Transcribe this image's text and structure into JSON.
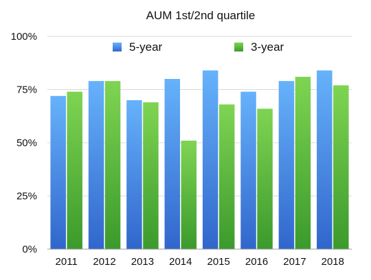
{
  "chart_data": {
    "type": "bar",
    "title": "AUM 1st/2nd quartile",
    "categories": [
      "2011",
      "2012",
      "2013",
      "2014",
      "2015",
      "2016",
      "2017",
      "2018"
    ],
    "series": [
      {
        "name": "5-year",
        "values": [
          72,
          79,
          70,
          80,
          84,
          74,
          79,
          84
        ],
        "color_top": "#66b2fb",
        "color_bottom": "#3166cc"
      },
      {
        "name": "3-year",
        "values": [
          74,
          79,
          69,
          51,
          68,
          66,
          81,
          77
        ],
        "color_top": "#7fd452",
        "color_bottom": "#3b9a2c"
      }
    ],
    "ylim": [
      0,
      100
    ],
    "yticks": [
      0,
      25,
      50,
      75,
      100
    ],
    "ytick_labels": [
      "0%",
      "25%",
      "50%",
      "75%",
      "100%"
    ],
    "grid": true,
    "legend_position": "top"
  }
}
